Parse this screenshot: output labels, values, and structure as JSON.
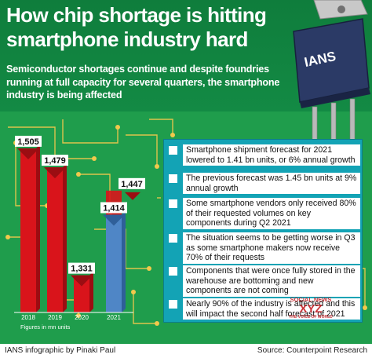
{
  "header": {
    "title": "How chip shortage is hitting smartphone industry hard",
    "subtitle": "Semiconductor shortages continue and despite foundries running at full capacity for several quarters, the smartphone industry is being affected"
  },
  "chip": {
    "logo_text": "IANS"
  },
  "chart_data": {
    "type": "bar",
    "categories": [
      "2018",
      "2019",
      "2020",
      "2021"
    ],
    "values": [
      1505,
      1479,
      1331,
      1414
    ],
    "forecast_previous": {
      "category": "2021",
      "value": 1447
    },
    "value_labels": [
      "1,505",
      "1,479",
      "1,331",
      "1,414"
    ],
    "forecast_label": "1,447",
    "note": "Figures in mn units",
    "ylim": [
      1280,
      1520
    ],
    "colors": {
      "bar": "#d9141b",
      "bar_dark": "#9b0d12",
      "forecast_bar": "#4f86c6",
      "forecast_bar_dark": "#2f5f99"
    }
  },
  "info": {
    "items": [
      "Smartphone shipment forecast for 2021 lowered to 1.41 bn units, or 6% annual growth",
      "The previous forecast was 1.45 bn units at 9% annual growth",
      "Some smartphone vendors only received 80% of their requested volumes on key components during Q2 2021",
      "The situation seems to be getting worse in Q3 as some smartphone makers now receive 70% of their requests",
      "Components that were once fully stored in the warehouse are bottoming and new components are not coming",
      "Nearly 90% of the industry is affected and this will impact the second half forecast of 2021"
    ]
  },
  "stamp": {
    "line1": "SOCIAL NEWS",
    "line2": "XYZ",
    "line3": "THE VOICE OF WORLD"
  },
  "footer": {
    "credit": "IANS infographic by Pinaki Paul",
    "source": "Source: Counterpoint Research"
  },
  "colors": {
    "header_green": "#138a44",
    "board_green": "#1f9d4c",
    "panel_teal": "#13a3b5"
  }
}
